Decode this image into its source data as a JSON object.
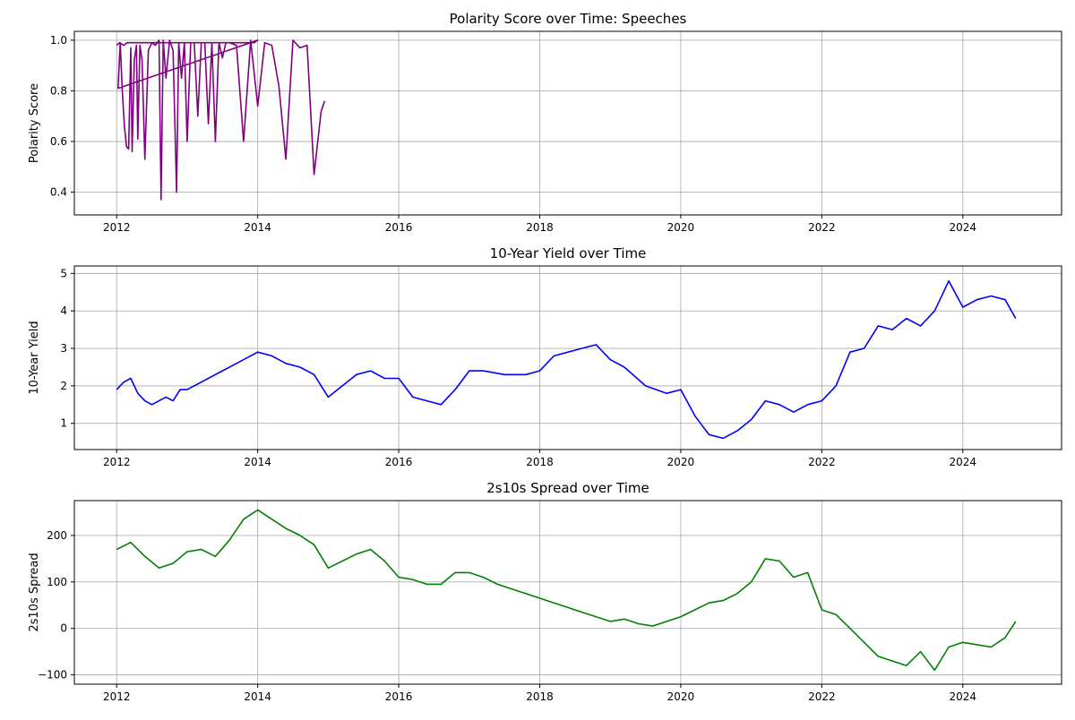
{
  "chart_data": [
    {
      "type": "line",
      "title": "Polarity Score over Time: Speeches",
      "xlabel": "",
      "ylabel": "Polarity Score",
      "xlim": [
        2011.4,
        2025.4
      ],
      "ylim": [
        0.31,
        1.035
      ],
      "x_ticks": [
        2012,
        2014,
        2016,
        2018,
        2020,
        2022,
        2024
      ],
      "y_ticks": [
        0.4,
        0.6,
        0.8,
        1.0
      ],
      "y_tick_labels": [
        "0.4",
        "0.6",
        "0.8",
        "1.0"
      ],
      "grid": true,
      "color": "#800080",
      "series": [
        {
          "x": [
            2012.0,
            2012.04,
            2012.1,
            2012.15,
            2012.2,
            2012.25,
            2012.3,
            2012.35,
            2012.4,
            2012.45,
            2012.5,
            2012.55,
            2012.6,
            2012.7,
            2012.75,
            2012.8,
            2012.85,
            2012.9,
            2012.95,
            2013.0,
            2013.05,
            2013.1,
            2013.15,
            2013.2,
            2013.25,
            2013.3,
            2013.35,
            2013.4,
            2013.5,
            2013.6,
            2013.65,
            2013.7,
            2013.8,
            2013.85,
            2013.9,
            2013.95,
            2014.0,
            2012.02,
            2012.05,
            2012.08,
            2012.11,
            2012.14,
            2012.17,
            2012.2,
            2012.22,
            2012.25,
            2012.28,
            2012.3,
            2012.33,
            2012.36,
            2012.4,
            2012.45,
            2012.5,
            2012.55,
            2012.6,
            2012.63,
            2012.66,
            2012.7,
            2012.75,
            2012.8,
            2012.85,
            2012.88,
            2012.92,
            2012.96,
            2013.0,
            2013.05,
            2013.1,
            2013.15,
            2013.2,
            2013.25,
            2013.3,
            2013.35,
            2013.4,
            2013.45,
            2013.5,
            2013.55,
            2013.6,
            2013.7,
            2013.8,
            2013.9,
            2014.0,
            2014.1,
            2014.2,
            2014.3,
            2014.4,
            2014.5,
            2014.6,
            2014.7,
            2014.8,
            2014.9,
            2014.95
          ],
          "y": [
            0.98,
            0.99,
            0.98,
            0.99,
            0.99,
            0.99,
            0.99,
            0.99,
            0.99,
            0.99,
            0.99,
            0.99,
            0.99,
            0.99,
            0.99,
            0.99,
            0.99,
            0.99,
            0.99,
            0.99,
            0.99,
            0.99,
            0.99,
            0.99,
            0.99,
            0.99,
            0.99,
            0.99,
            0.99,
            0.99,
            0.99,
            0.99,
            0.99,
            0.99,
            0.99,
            0.99,
            1.0,
            0.81,
            0.99,
            0.8,
            0.66,
            0.58,
            0.57,
            0.97,
            0.56,
            0.92,
            0.98,
            0.61,
            0.98,
            0.92,
            0.53,
            0.96,
            0.99,
            0.98,
            1.0,
            0.37,
            1.0,
            0.85,
            1.0,
            0.96,
            0.4,
            0.99,
            0.85,
            0.99,
            0.6,
            0.99,
            0.99,
            0.7,
            0.99,
            0.99,
            0.67,
            0.99,
            0.6,
            0.99,
            0.93,
            0.99,
            0.99,
            0.98,
            0.6,
            1.0,
            0.74,
            0.99,
            0.98,
            0.82,
            0.53,
            1.0,
            0.97,
            0.98,
            0.47,
            0.72,
            0.76
          ]
        }
      ]
    },
    {
      "type": "line",
      "title": "10-Year Yield over Time",
      "xlabel": "",
      "ylabel": "10-Year Yield",
      "xlim": [
        2011.4,
        2025.4
      ],
      "ylim": [
        0.3,
        5.2
      ],
      "x_ticks": [
        2012,
        2014,
        2016,
        2018,
        2020,
        2022,
        2024
      ],
      "y_ticks": [
        1,
        2,
        3,
        4,
        5
      ],
      "y_tick_labels": [
        "1",
        "2",
        "3",
        "4",
        "5"
      ],
      "grid": true,
      "color": "#0000ff",
      "series": [
        {
          "x": [
            2012.0,
            2012.1,
            2012.2,
            2012.3,
            2012.4,
            2012.5,
            2012.6,
            2012.7,
            2012.8,
            2012.9,
            2013.0,
            2014.0,
            2014.2,
            2014.4,
            2014.6,
            2014.8,
            2015.0,
            2015.2,
            2015.4,
            2015.6,
            2015.8,
            2016.0,
            2016.2,
            2016.4,
            2016.6,
            2016.8,
            2017.0,
            2017.2,
            2017.5,
            2017.8,
            2018.0,
            2018.2,
            2018.4,
            2018.6,
            2018.8,
            2019.0,
            2019.2,
            2019.5,
            2019.8,
            2020.0,
            2020.2,
            2020.4,
            2020.6,
            2020.8,
            2021.0,
            2021.2,
            2021.4,
            2021.6,
            2021.8,
            2022.0,
            2022.2,
            2022.4,
            2022.6,
            2022.8,
            2023.0,
            2023.2,
            2023.4,
            2023.6,
            2023.8,
            2024.0,
            2024.2,
            2024.4,
            2024.6,
            2024.75
          ],
          "y": [
            1.9,
            2.1,
            2.2,
            1.8,
            1.6,
            1.5,
            1.6,
            1.7,
            1.6,
            1.9,
            1.9,
            2.9,
            2.8,
            2.6,
            2.5,
            2.3,
            1.7,
            2.0,
            2.3,
            2.4,
            2.2,
            2.2,
            1.7,
            1.6,
            1.5,
            1.9,
            2.4,
            2.4,
            2.3,
            2.3,
            2.4,
            2.8,
            2.9,
            3.0,
            3.1,
            2.7,
            2.5,
            2.0,
            1.8,
            1.9,
            1.2,
            0.7,
            0.6,
            0.8,
            1.1,
            1.6,
            1.5,
            1.3,
            1.5,
            1.6,
            2.0,
            2.9,
            3.0,
            3.6,
            3.5,
            3.8,
            3.6,
            4.0,
            4.8,
            4.1,
            4.3,
            4.4,
            4.3,
            3.8
          ]
        }
      ]
    },
    {
      "type": "line",
      "title": "2s10s Spread over Time",
      "xlabel": "",
      "ylabel": "2s10s Spread",
      "xlim": [
        2011.4,
        2025.4
      ],
      "ylim": [
        -120,
        275
      ],
      "x_ticks": [
        2012,
        2014,
        2016,
        2018,
        2020,
        2022,
        2024
      ],
      "y_ticks": [
        -100,
        0,
        100,
        200
      ],
      "y_tick_labels": [
        "−100",
        "0",
        "100",
        "200"
      ],
      "grid": true,
      "color": "#008000",
      "series": [
        {
          "x": [
            2012.0,
            2012.2,
            2012.4,
            2012.6,
            2012.8,
            2013.0,
            2013.2,
            2013.4,
            2013.6,
            2013.8,
            2014.0,
            2014.2,
            2014.4,
            2014.6,
            2014.8,
            2015.0,
            2015.2,
            2015.4,
            2015.6,
            2015.8,
            2016.0,
            2016.2,
            2016.4,
            2016.6,
            2016.8,
            2017.0,
            2017.2,
            2017.4,
            2017.6,
            2017.8,
            2018.0,
            2018.2,
            2018.4,
            2018.6,
            2018.8,
            2019.0,
            2019.2,
            2019.4,
            2019.6,
            2019.8,
            2020.0,
            2020.2,
            2020.4,
            2020.6,
            2020.8,
            2021.0,
            2021.2,
            2021.4,
            2021.6,
            2021.8,
            2022.0,
            2022.2,
            2022.4,
            2022.6,
            2022.8,
            2023.0,
            2023.2,
            2023.4,
            2023.6,
            2023.8,
            2024.0,
            2024.2,
            2024.4,
            2024.6,
            2024.75
          ],
          "y": [
            170,
            185,
            155,
            130,
            140,
            165,
            170,
            155,
            190,
            235,
            255,
            235,
            215,
            200,
            180,
            130,
            145,
            160,
            170,
            145,
            110,
            105,
            95,
            95,
            120,
            120,
            110,
            95,
            85,
            75,
            65,
            55,
            45,
            35,
            25,
            15,
            20,
            10,
            5,
            15,
            25,
            40,
            55,
            60,
            75,
            100,
            150,
            145,
            110,
            120,
            40,
            30,
            0,
            -30,
            -60,
            -70,
            -80,
            -50,
            -90,
            -40,
            -30,
            -35,
            -40,
            -20,
            15
          ]
        }
      ]
    }
  ]
}
